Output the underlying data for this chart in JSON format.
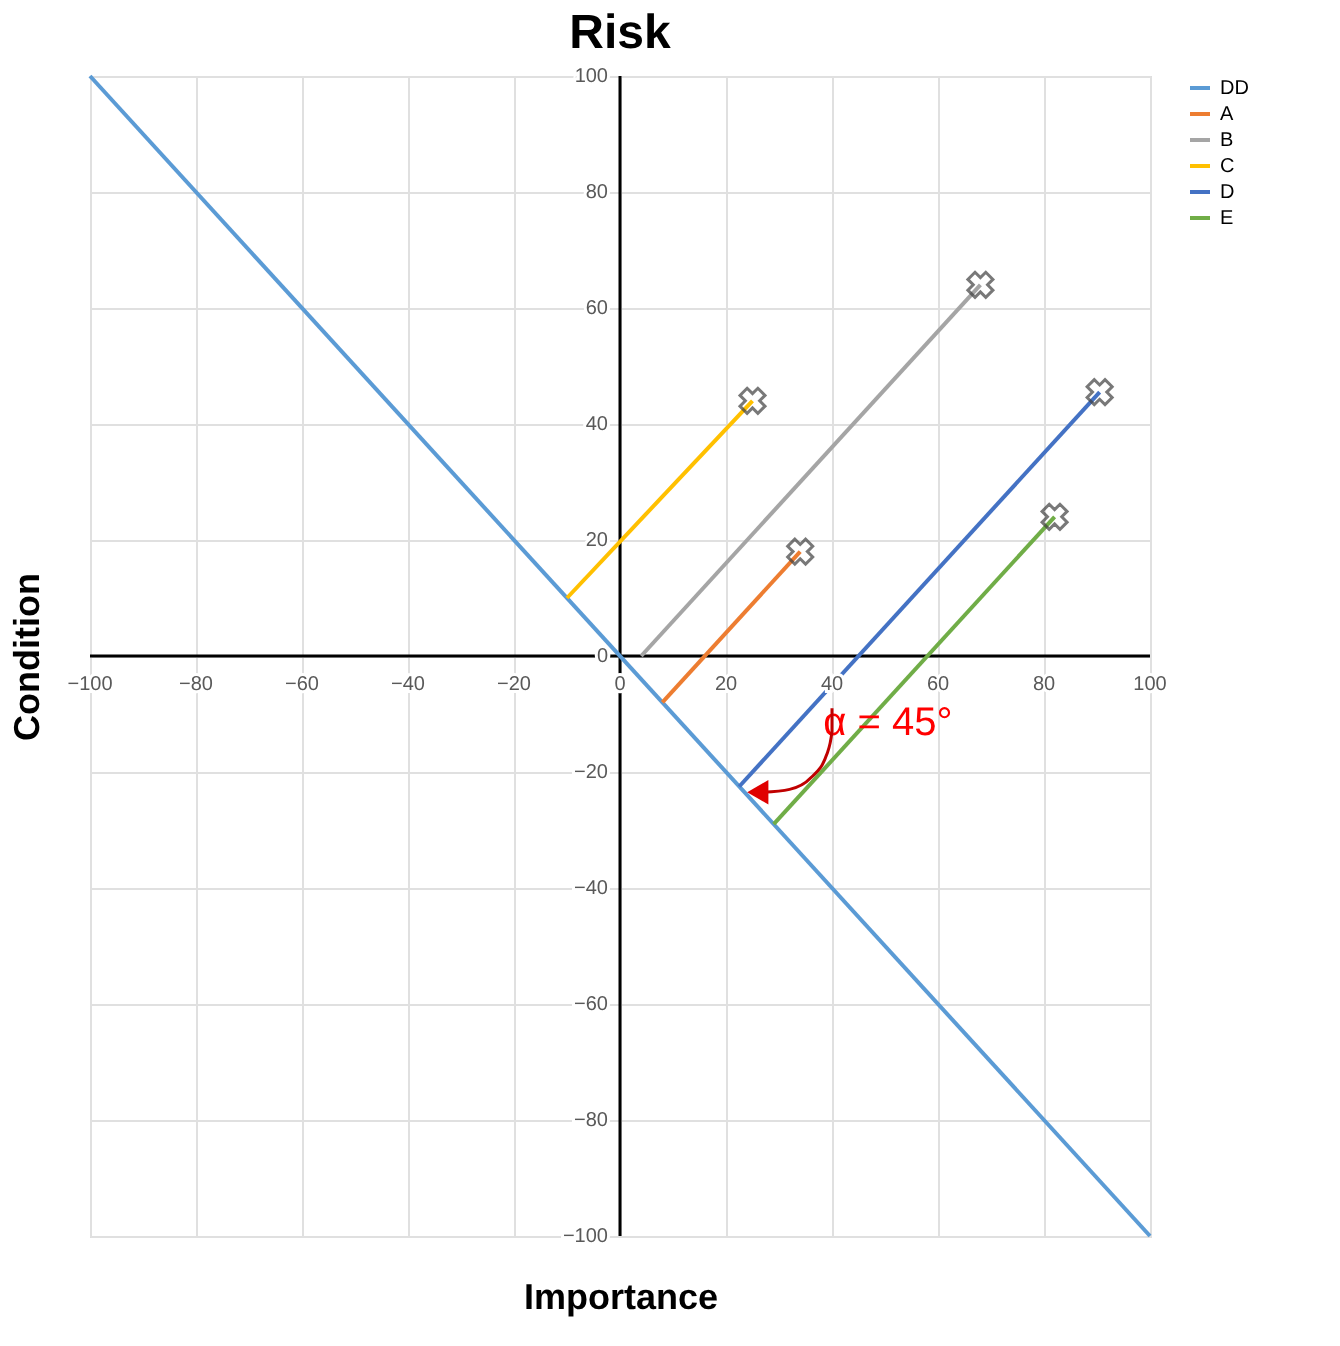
{
  "chart_data": {
    "type": "line",
    "title": "Risk",
    "xlabel": "Importance",
    "ylabel": "Condition",
    "xlim": [
      -100,
      100
    ],
    "ylim": [
      -100,
      100
    ],
    "xticks": [
      -100,
      -80,
      -60,
      -40,
      -20,
      0,
      20,
      40,
      60,
      80,
      100
    ],
    "yticks": [
      -100,
      -80,
      -60,
      -40,
      -20,
      0,
      20,
      40,
      60,
      80,
      100
    ],
    "grid": true,
    "legend": "top right",
    "series": [
      {
        "name": "DD",
        "color": "#5b9bd5",
        "x": [
          -100,
          100
        ],
        "values": [
          100,
          -100
        ]
      },
      {
        "name": "A",
        "color": "#ed7d31",
        "x": [
          8,
          34
        ],
        "values": [
          -8,
          18
        ]
      },
      {
        "name": "B",
        "color": "#a5a5a5",
        "x": [
          4,
          68
        ],
        "values": [
          0,
          64
        ]
      },
      {
        "name": "C",
        "color": "#ffc000",
        "x": [
          -10,
          25
        ],
        "values": [
          10,
          44
        ]
      },
      {
        "name": "D",
        "color": "#4472c4",
        "x": [
          22.5,
          90.5
        ],
        "values": [
          -22.5,
          45.5
        ]
      },
      {
        "name": "E",
        "color": "#70ad47",
        "x": [
          29,
          82
        ],
        "values": [
          -29,
          24
        ]
      },
      {
        "type": "scatter",
        "marker": "cross",
        "color": "#404040",
        "x": [
          34,
          68,
          25,
          90.5,
          82
        ],
        "values": [
          18,
          64,
          44,
          45.5,
          24
        ]
      }
    ],
    "annotations": [
      {
        "text": "α = 45°",
        "x": 22.5,
        "y": -22.5
      }
    ]
  }
}
